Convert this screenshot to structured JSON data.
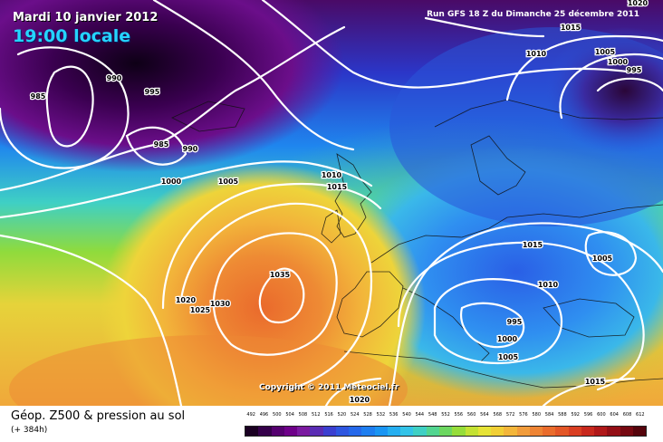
{
  "header": {
    "date": "Mardi 10 janvier 2012",
    "time": "19:00 locale",
    "run": "Run GFS 18 Z du Dimanche 25 décembre 2011"
  },
  "copyright": "Copyright © 2011 Meteociel.fr",
  "footer": {
    "title": "Géop. Z500 & pression au sol",
    "subtitle": "(+ 384h)"
  },
  "isobar_labels": [
    "1020",
    "1015",
    "1010",
    "1005",
    "1000",
    "995",
    "990",
    "985",
    "990",
    "995",
    "985",
    "990",
    "1000",
    "1005",
    "1010",
    "1015",
    "1035",
    "1020",
    "1025",
    "1030",
    "1015",
    "1010",
    "1005",
    "1000",
    "995",
    "1000",
    "1005",
    "1015",
    "1020"
  ],
  "legend": {
    "values": [
      "492",
      "496",
      "500",
      "504",
      "508",
      "512",
      "516",
      "520",
      "524",
      "528",
      "532",
      "536",
      "540",
      "544",
      "548",
      "552",
      "556",
      "560",
      "564",
      "568",
      "572",
      "576",
      "580",
      "584",
      "588",
      "592",
      "596",
      "600",
      "604",
      "608",
      "612"
    ],
    "colors": [
      "#1a0022",
      "#35004a",
      "#55006f",
      "#6e0089",
      "#7b1aa0",
      "#5a2cb4",
      "#3b3fd0",
      "#2e56e0",
      "#2568ea",
      "#1e7ef0",
      "#1a95f3",
      "#25aef0",
      "#33c3e8",
      "#3fd0c4",
      "#52d590",
      "#6cd760",
      "#96dd3a",
      "#c4e233",
      "#e6e336",
      "#f1cf35",
      "#f3b63a",
      "#f19c3b",
      "#ee8434",
      "#ea6c2c",
      "#e35627",
      "#d93e22",
      "#c8281d",
      "#b01819",
      "#930e15",
      "#760811",
      "#55040c"
    ]
  }
}
